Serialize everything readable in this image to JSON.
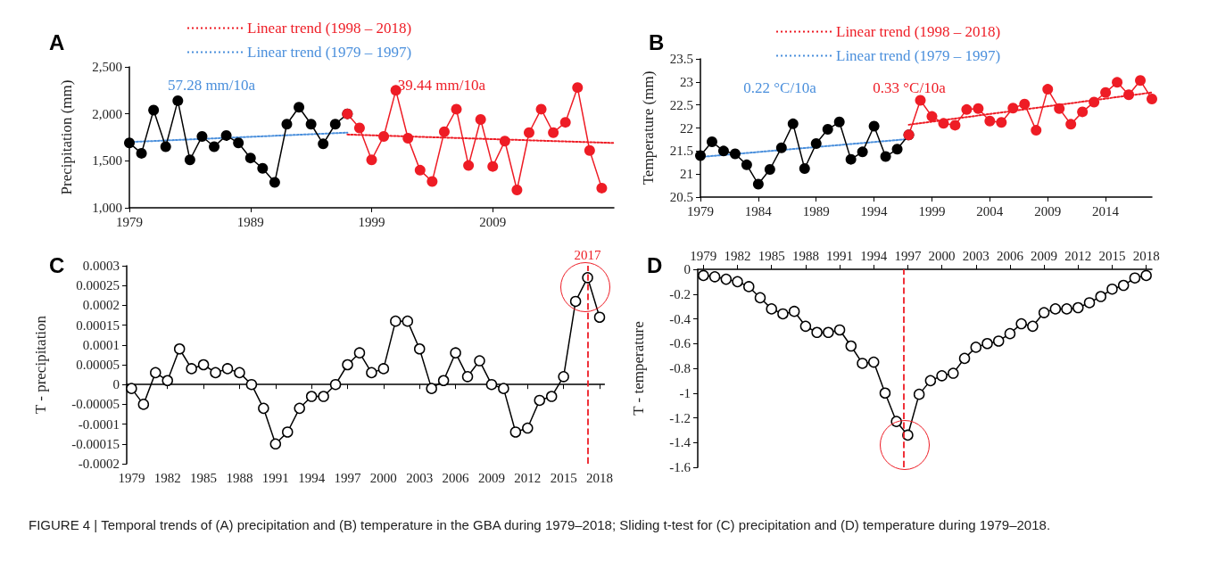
{
  "chart_data": [
    {
      "type": "line",
      "title": "A",
      "ylabel": "Precipitation (mm)",
      "xlim": [
        1979,
        2019
      ],
      "xticks": [
        1979,
        1989,
        1999,
        2009
      ],
      "ylim": [
        1000,
        2500
      ],
      "yticks": [
        {
          "value": 1000,
          "label": "1,000"
        },
        {
          "value": 1500,
          "label": "1,500"
        },
        {
          "value": 2000,
          "label": "2,000"
        },
        {
          "value": 2500,
          "label": "2,500"
        }
      ],
      "marker": "circle",
      "line_style": "solid",
      "legend": "top",
      "annotations": [
        "57.28 mm/10a",
        "-39.44 mm/10a"
      ],
      "series": [
        {
          "color": "#000000",
          "x": [
            1979,
            1980,
            1981,
            1982,
            1983,
            1984,
            1985,
            1986,
            1987,
            1988,
            1989,
            1990,
            1991,
            1992,
            1993,
            1994,
            1995,
            1996,
            1997
          ],
          "values": [
            1690,
            1580,
            2040,
            1650,
            2140,
            1510,
            1760,
            1650,
            1770,
            1690,
            1530,
            1420,
            1270,
            1890,
            2070,
            1890,
            1680,
            1890,
            2000
          ]
        },
        {
          "color": "#ee1c25",
          "x": [
            1997,
            1998,
            1999,
            2000,
            2001,
            2002,
            2003,
            2004,
            2005,
            2006,
            2007,
            2008,
            2009,
            2010,
            2011,
            2012,
            2013,
            2014,
            2015,
            2016,
            2017,
            2018
          ],
          "values": [
            2000,
            1850,
            1510,
            1760,
            2250,
            1740,
            1400,
            1280,
            1810,
            2050,
            1450,
            1940,
            1440,
            1710,
            1190,
            1800,
            2050,
            1800,
            1910,
            2280,
            1610,
            1210
          ]
        },
        {
          "name": "Linear trend (1998 – 2018)",
          "color": "#ee1c25",
          "marker": "none",
          "line_style": "dotted",
          "x": [
            1997,
            2019
          ],
          "values": [
            1780,
            1690
          ]
        },
        {
          "name": "Linear trend (1979 – 1997)",
          "color": "#4a8fdc",
          "marker": "none",
          "line_style": "dotted",
          "x": [
            1979,
            1997
          ],
          "values": [
            1700,
            1800
          ]
        }
      ]
    },
    {
      "type": "line",
      "title": "B",
      "ylabel": "Temperature (mm)",
      "xlim": [
        1979,
        2018
      ],
      "xticks": [
        1979,
        1984,
        1989,
        1994,
        1999,
        2004,
        2009,
        2014
      ],
      "ylim": [
        20.5,
        23.5
      ],
      "yticks": [
        20.5,
        21,
        21.5,
        22,
        22.5,
        23,
        23.5
      ],
      "marker": "circle",
      "line_style": "solid",
      "legend": "top",
      "annotations": [
        "0.22 °C/10a",
        "0.33 °C/10a"
      ],
      "series": [
        {
          "color": "#000000",
          "x": [
            1979,
            1980,
            1981,
            1982,
            1983,
            1984,
            1985,
            1986,
            1987,
            1988,
            1989,
            1990,
            1991,
            1992,
            1993,
            1994,
            1995,
            1996,
            1997
          ],
          "values": [
            21.4,
            21.7,
            21.5,
            21.44,
            21.2,
            20.78,
            21.1,
            21.57,
            22.09,
            21.12,
            21.66,
            21.97,
            22.13,
            21.32,
            21.48,
            22.04,
            21.38,
            21.54,
            21.85
          ]
        },
        {
          "color": "#ee1c25",
          "x": [
            1997,
            1998,
            1999,
            2000,
            2001,
            2002,
            2003,
            2004,
            2005,
            2006,
            2007,
            2008,
            2009,
            2010,
            2011,
            2012,
            2013,
            2014,
            2015,
            2016,
            2017,
            2018
          ],
          "values": [
            21.85,
            22.6,
            22.25,
            22.1,
            22.06,
            22.4,
            22.42,
            22.15,
            22.12,
            22.43,
            22.52,
            21.95,
            22.84,
            22.42,
            22.08,
            22.35,
            22.56,
            22.77,
            22.99,
            22.72,
            23.03,
            22.63
          ]
        },
        {
          "name": "Linear trend (1998 – 2018)",
          "color": "#ee1c25",
          "marker": "none",
          "line_style": "dotted",
          "x": [
            1997,
            2018
          ],
          "values": [
            22.07,
            22.77
          ]
        },
        {
          "name": "Linear trend (1979 – 1997)",
          "color": "#4a8fdc",
          "marker": "none",
          "line_style": "dotted",
          "x": [
            1979,
            1997
          ],
          "values": [
            21.37,
            21.76
          ]
        }
      ]
    },
    {
      "type": "line",
      "title": "C",
      "ylabel": "T - precipitation",
      "xlim": [
        1978.6,
        2018.4
      ],
      "xticks": [
        1979,
        1982,
        1985,
        1988,
        1991,
        1994,
        1997,
        2000,
        2003,
        2006,
        2009,
        2012,
        2015,
        2018
      ],
      "ylim": [
        -0.0002,
        0.0003
      ],
      "yticks": [
        -0.0002,
        -0.00015,
        -0.0001,
        {
          "value": -5e-05,
          "label": "-0.00005"
        },
        0,
        {
          "value": 5e-05,
          "label": "0.00005"
        },
        0.0001,
        0.00015,
        0.0002,
        0.00025,
        0.0003
      ],
      "marker": "circle",
      "line_style": "solid",
      "ref_lines": [
        {
          "axis": "x",
          "value": 2017,
          "label": "2017",
          "color": "#ee1c25",
          "line_style": "dashed"
        }
      ],
      "x": [
        1979,
        1980,
        1981,
        1982,
        1983,
        1984,
        1985,
        1986,
        1987,
        1988,
        1989,
        1990,
        1991,
        1992,
        1993,
        1994,
        1995,
        1996,
        1997,
        1998,
        1999,
        2000,
        2001,
        2002,
        2003,
        2004,
        2005,
        2006,
        2007,
        2008,
        2009,
        2010,
        2011,
        2012,
        2013,
        2014,
        2015,
        2016,
        2017,
        2018
      ],
      "series": [
        {
          "color": "#000000",
          "values": [
            -1e-05,
            -5e-05,
            3e-05,
            1e-05,
            9e-05,
            4e-05,
            5e-05,
            3e-05,
            4e-05,
            3e-05,
            0,
            -6e-05,
            -0.00015,
            -0.00012,
            -6e-05,
            -3e-05,
            -3e-05,
            0,
            5e-05,
            8e-05,
            3e-05,
            4e-05,
            0.00016,
            0.00016,
            9e-05,
            -1e-05,
            1e-05,
            8e-05,
            2e-05,
            6e-05,
            0,
            -1e-05,
            -0.00012,
            -0.00011,
            -4e-05,
            -3e-05,
            2e-05,
            0.00021,
            0.00027,
            0.00017
          ]
        }
      ]
    },
    {
      "type": "line",
      "title": "D",
      "ylabel": "T - temperature",
      "xlim": [
        1978.5,
        2018.5
      ],
      "xticks": [
        1979,
        1982,
        1985,
        1988,
        1991,
        1994,
        1997,
        2000,
        2003,
        2006,
        2009,
        2012,
        2015,
        2018
      ],
      "ylim": [
        -1.6,
        0
      ],
      "yticks": [
        -1.6,
        -1.4,
        -1.2,
        -1,
        -0.8,
        -0.6,
        -0.4,
        -0.2,
        0
      ],
      "marker": "circle",
      "line_style": "solid",
      "ref_lines": [
        {
          "axis": "x",
          "value": 1996.6,
          "color": "#ee1c25",
          "line_style": "dashed"
        }
      ],
      "annotations": [
        "FIGURE 4 | Temporal trends of (A) precipitation and (B) temperature in the GBA during 1979–2018; Sliding t-test for (C) precipitation and (D) temperature during 1979–2018."
      ],
      "x": [
        1979,
        1980,
        1981,
        1982,
        1983,
        1984,
        1985,
        1986,
        1987,
        1988,
        1989,
        1990,
        1991,
        1992,
        1993,
        1994,
        1995,
        1996,
        1997,
        1998,
        1999,
        2000,
        2001,
        2002,
        2003,
        2004,
        2005,
        2006,
        2007,
        2008,
        2009,
        2010,
        2011,
        2012,
        2013,
        2014,
        2015,
        2016,
        2017,
        2018
      ],
      "series": [
        {
          "color": "#000000",
          "values": [
            -0.05,
            -0.06,
            -0.08,
            -0.1,
            -0.14,
            -0.23,
            -0.32,
            -0.36,
            -0.34,
            -0.46,
            -0.51,
            -0.51,
            -0.49,
            -0.62,
            -0.76,
            -0.75,
            -1,
            -1.23,
            -1.34,
            -1.01,
            -0.9,
            -0.86,
            -0.84,
            -0.72,
            -0.63,
            -0.6,
            -0.58,
            -0.52,
            -0.44,
            -0.46,
            -0.35,
            -0.32,
            -0.32,
            -0.31,
            -0.27,
            -0.22,
            -0.16,
            -0.13,
            -0.07,
            -0.05
          ]
        }
      ]
    }
  ]
}
